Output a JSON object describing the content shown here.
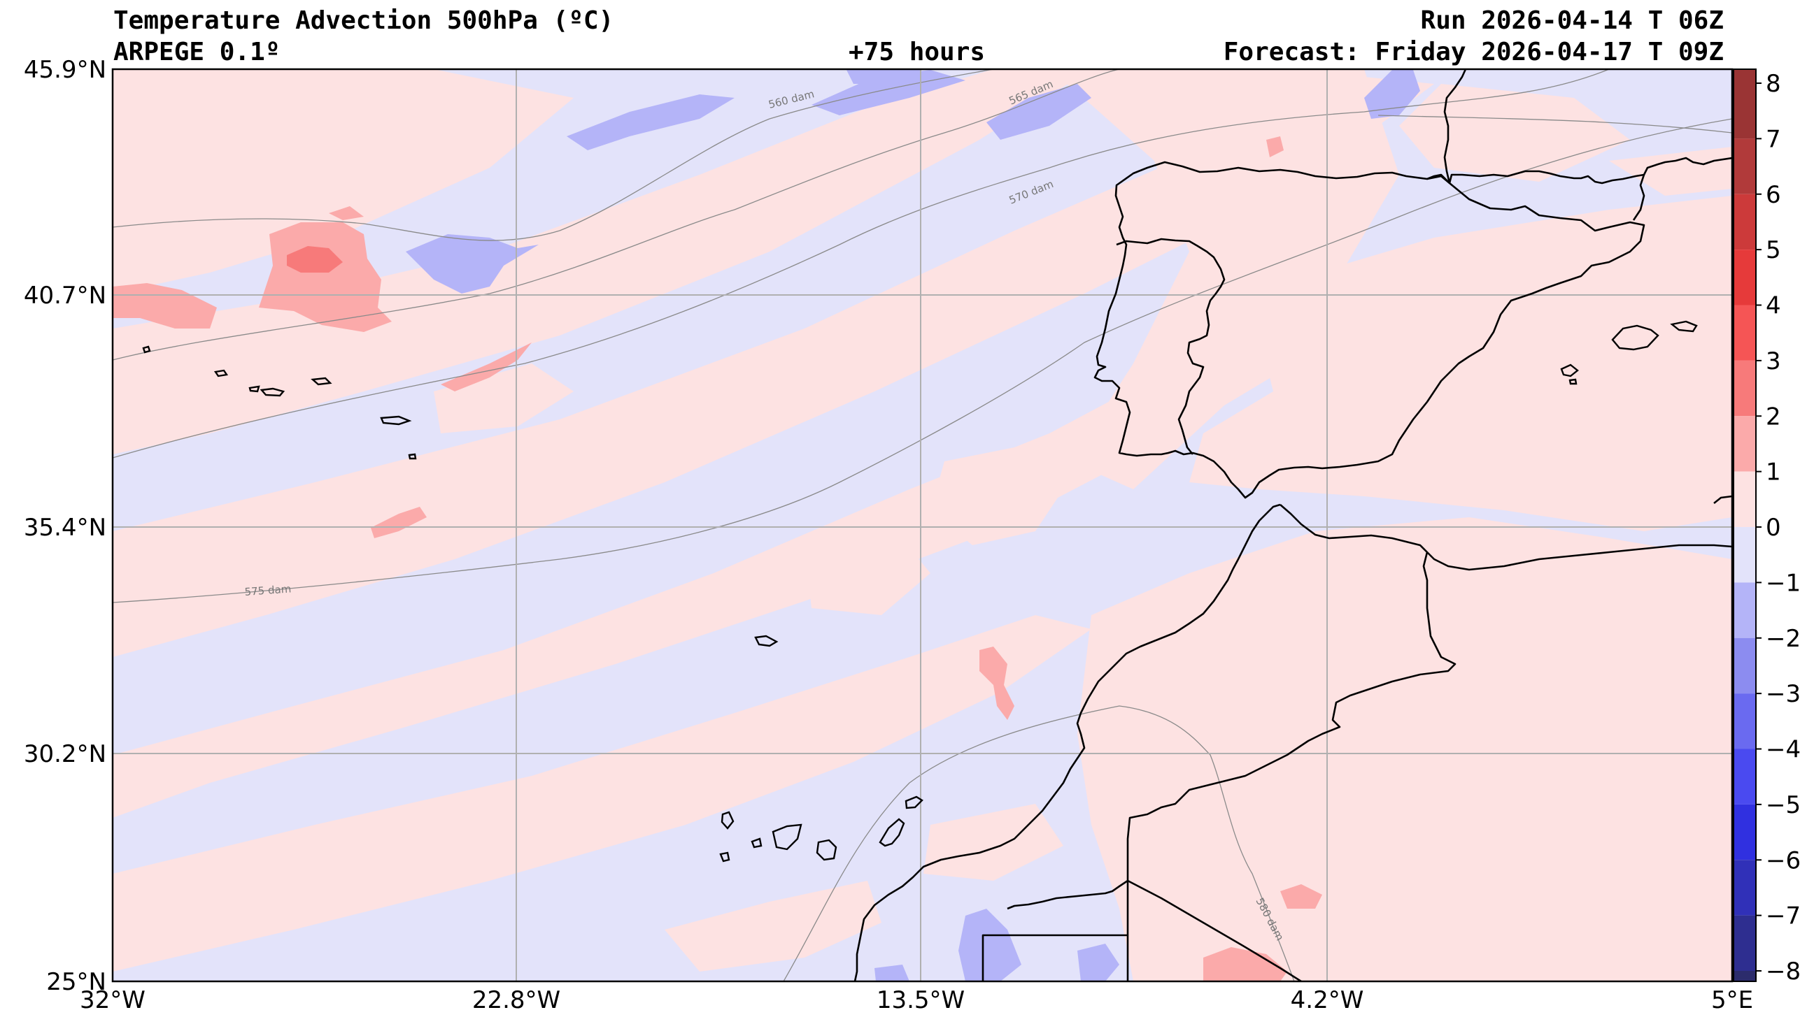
{
  "header": {
    "title": "Temperature Advection  500hPa (ºC)",
    "model": "ARPEGE 0.1º",
    "lead_time": "+75 hours",
    "run": "Run 2026-04-14 T 06Z",
    "forecast": "Forecast: Friday 2026-04-17 T 09Z"
  },
  "map": {
    "lat_labels": [
      "45.9°N",
      "40.7°N",
      "35.4°N",
      "30.2°N",
      "25°N"
    ],
    "lon_labels": [
      "32°W",
      "22.8°W",
      "13.5°W",
      "4.2°W",
      "5°E"
    ],
    "lat_range": [
      25,
      45.9
    ],
    "lon_range": [
      -32,
      5
    ],
    "gridlines": true,
    "background_color": "#e3e3fa",
    "warm_color": "#fde2e2",
    "contour_labels": [
      "560 dam",
      "565 dam",
      "570 dam",
      "575 dam",
      "580 dam"
    ]
  },
  "colorbar": {
    "ticks": [
      "8",
      "7",
      "6",
      "5",
      "4",
      "3",
      "2",
      "1",
      "0",
      "−1",
      "−2",
      "−3",
      "−4",
      "−5",
      "−6",
      "−7",
      "−8"
    ],
    "colors": [
      "#9a3434",
      "#b13a3a",
      "#cc3a3a",
      "#e63a3a",
      "#f55555",
      "#f77a7a",
      "#fbaaaa",
      "#fde2e2",
      "#e3e3fa",
      "#b4b4f8",
      "#8c8cf0",
      "#6a6af0",
      "#4a4af0",
      "#3030e0",
      "#3030b8",
      "#2e2e90",
      "#2c2c6c"
    ]
  }
}
